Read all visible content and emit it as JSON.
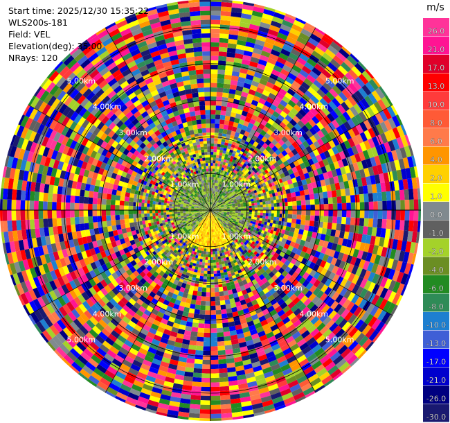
{
  "header": {
    "start_time": "Start time: 2025/12/30 15:35:22",
    "instrument": "WLS200s-181",
    "field": "Field: VEL",
    "elevation": "Elevation(deg): 35.00",
    "nrays": "NRays: 120"
  },
  "chart_data": {
    "type": "heatmap",
    "projection": "polar-ppi",
    "field": "VEL",
    "instrument": "WLS200s-181",
    "start_time": "2025/12/30 15:35:22",
    "elevation_deg": 35.0,
    "n_rays": 120,
    "range_rings_km": [
      "1.00km",
      "2.00km",
      "3.00km",
      "4.00km",
      "5.00km"
    ],
    "colorbar": {
      "unit": "m/s",
      "ticks": [
        "26.0",
        "21.0",
        "17.0",
        "13.0",
        "10.0",
        "8.0",
        "6.0",
        "4.0",
        "2.0",
        "1.0",
        "0.0",
        "-1.0",
        "-2.0",
        "-4.0",
        "-6.0",
        "-8.0",
        "-10.0",
        "-13.0",
        "-17.0",
        "-21.0",
        "-26.0",
        "-30.0"
      ],
      "colors": [
        "#ff3399",
        "#ff1493",
        "#e0002a",
        "#ff0000",
        "#ff3b3b",
        "#ff5a36",
        "#ff7a4a",
        "#ff9500",
        "#ffd000",
        "#ffff00",
        "#808a8f",
        "#606060",
        "#a4d22a",
        "#6b8e23",
        "#228b22",
        "#2e8b57",
        "#1e7fd0",
        "#3f5fd6",
        "#0000ff",
        "#0000cd",
        "#000080",
        "#191970"
      ]
    }
  }
}
